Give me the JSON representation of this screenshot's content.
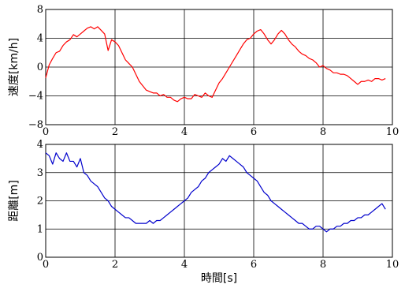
{
  "chart_data": [
    {
      "type": "line",
      "title": "",
      "xlabel": "",
      "ylabel": "速度[km/h]",
      "xlim": [
        0,
        10
      ],
      "ylim": [
        -8,
        8
      ],
      "xticks": [
        "0",
        "2",
        "4",
        "6",
        "8",
        "10"
      ],
      "yticks": [
        "−8",
        "−4",
        "0",
        "4",
        "8"
      ],
      "grid": true,
      "series": [
        {
          "color": "#ff0000",
          "x": [
            0.0,
            0.1,
            0.2,
            0.3,
            0.4,
            0.5,
            0.6,
            0.7,
            0.8,
            0.9,
            1.0,
            1.1,
            1.2,
            1.3,
            1.4,
            1.5,
            1.6,
            1.7,
            1.8,
            1.9,
            2.0,
            2.1,
            2.2,
            2.3,
            2.4,
            2.5,
            2.6,
            2.7,
            2.8,
            2.9,
            3.0,
            3.1,
            3.2,
            3.3,
            3.4,
            3.5,
            3.6,
            3.7,
            3.8,
            3.9,
            4.0,
            4.1,
            4.2,
            4.3,
            4.4,
            4.5,
            4.6,
            4.7,
            4.8,
            4.9,
            5.0,
            5.1,
            5.2,
            5.3,
            5.4,
            5.5,
            5.6,
            5.7,
            5.8,
            5.9,
            6.0,
            6.1,
            6.2,
            6.3,
            6.4,
            6.5,
            6.6,
            6.7,
            6.8,
            6.9,
            7.0,
            7.1,
            7.2,
            7.3,
            7.4,
            7.5,
            7.6,
            7.7,
            7.8,
            7.9,
            8.0,
            8.1,
            8.2,
            8.3,
            8.4,
            8.5,
            8.6,
            8.7,
            8.8,
            8.9,
            9.0,
            9.1,
            9.2,
            9.3,
            9.4,
            9.5,
            9.6,
            9.7,
            9.8
          ],
          "values": [
            -1.5,
            0.3,
            1.2,
            2.0,
            2.2,
            3.0,
            3.5,
            3.8,
            4.5,
            4.2,
            4.6,
            5.0,
            5.4,
            5.6,
            5.3,
            5.6,
            5.1,
            4.6,
            2.3,
            3.8,
            3.5,
            3.0,
            2.0,
            1.0,
            0.5,
            0.0,
            -1.0,
            -2.0,
            -2.6,
            -3.2,
            -3.4,
            -3.6,
            -3.6,
            -4.0,
            -3.8,
            -4.2,
            -4.2,
            -4.6,
            -4.8,
            -4.4,
            -4.2,
            -4.4,
            -4.4,
            -3.8,
            -4.0,
            -4.2,
            -3.6,
            -4.0,
            -4.2,
            -3.2,
            -2.2,
            -1.6,
            -0.8,
            0.0,
            0.8,
            1.6,
            2.4,
            3.2,
            3.8,
            4.0,
            4.6,
            5.0,
            5.2,
            4.6,
            3.8,
            3.2,
            3.8,
            4.6,
            5.1,
            4.6,
            3.8,
            3.2,
            2.8,
            2.2,
            1.8,
            1.6,
            1.2,
            1.0,
            0.6,
            0.0,
            0.2,
            -0.2,
            -0.4,
            -0.8,
            -0.8,
            -1.0,
            -1.0,
            -1.2,
            -1.6,
            -2.0,
            -2.4,
            -2.0,
            -2.0,
            -1.8,
            -2.0,
            -1.6,
            -1.6,
            -1.8,
            -1.6
          ]
        }
      ]
    },
    {
      "type": "line",
      "title": "",
      "xlabel": "時間[s]",
      "ylabel": "距離[m]",
      "xlim": [
        0,
        10
      ],
      "ylim": [
        0,
        4
      ],
      "xticks": [
        "0",
        "2",
        "4",
        "6",
        "8",
        "10"
      ],
      "yticks": [
        "0",
        "1",
        "2",
        "3",
        "4"
      ],
      "grid": true,
      "series": [
        {
          "color": "#0000cc",
          "x": [
            0.0,
            0.1,
            0.2,
            0.3,
            0.4,
            0.5,
            0.6,
            0.7,
            0.8,
            0.9,
            1.0,
            1.1,
            1.2,
            1.3,
            1.4,
            1.5,
            1.6,
            1.7,
            1.8,
            1.9,
            2.0,
            2.1,
            2.2,
            2.3,
            2.4,
            2.5,
            2.6,
            2.7,
            2.8,
            2.9,
            3.0,
            3.1,
            3.2,
            3.3,
            3.4,
            3.5,
            3.6,
            3.7,
            3.8,
            3.9,
            4.0,
            4.1,
            4.2,
            4.3,
            4.4,
            4.5,
            4.6,
            4.7,
            4.8,
            4.9,
            5.0,
            5.1,
            5.2,
            5.3,
            5.4,
            5.5,
            5.6,
            5.7,
            5.8,
            5.9,
            6.0,
            6.1,
            6.2,
            6.3,
            6.4,
            6.5,
            6.6,
            6.7,
            6.8,
            6.9,
            7.0,
            7.1,
            7.2,
            7.3,
            7.4,
            7.5,
            7.6,
            7.7,
            7.8,
            7.9,
            8.0,
            8.1,
            8.2,
            8.3,
            8.4,
            8.5,
            8.6,
            8.7,
            8.8,
            8.9,
            9.0,
            9.1,
            9.2,
            9.3,
            9.4,
            9.5,
            9.6,
            9.7,
            9.8
          ],
          "values": [
            3.7,
            3.6,
            3.3,
            3.7,
            3.5,
            3.4,
            3.7,
            3.4,
            3.4,
            3.2,
            3.5,
            3.0,
            2.9,
            2.7,
            2.6,
            2.5,
            2.3,
            2.1,
            2.0,
            1.8,
            1.7,
            1.6,
            1.5,
            1.4,
            1.4,
            1.3,
            1.2,
            1.2,
            1.2,
            1.2,
            1.3,
            1.2,
            1.3,
            1.3,
            1.4,
            1.5,
            1.6,
            1.7,
            1.8,
            1.9,
            2.0,
            2.1,
            2.3,
            2.4,
            2.5,
            2.7,
            2.8,
            3.0,
            3.1,
            3.2,
            3.3,
            3.5,
            3.4,
            3.6,
            3.5,
            3.4,
            3.3,
            3.2,
            3.0,
            2.9,
            2.8,
            2.7,
            2.5,
            2.3,
            2.2,
            2.0,
            1.9,
            1.8,
            1.7,
            1.6,
            1.5,
            1.4,
            1.3,
            1.2,
            1.2,
            1.1,
            1.0,
            1.0,
            1.1,
            1.1,
            1.0,
            0.9,
            1.0,
            1.0,
            1.1,
            1.1,
            1.2,
            1.2,
            1.3,
            1.3,
            1.4,
            1.4,
            1.5,
            1.5,
            1.6,
            1.7,
            1.8,
            1.9,
            1.7
          ]
        }
      ]
    }
  ]
}
